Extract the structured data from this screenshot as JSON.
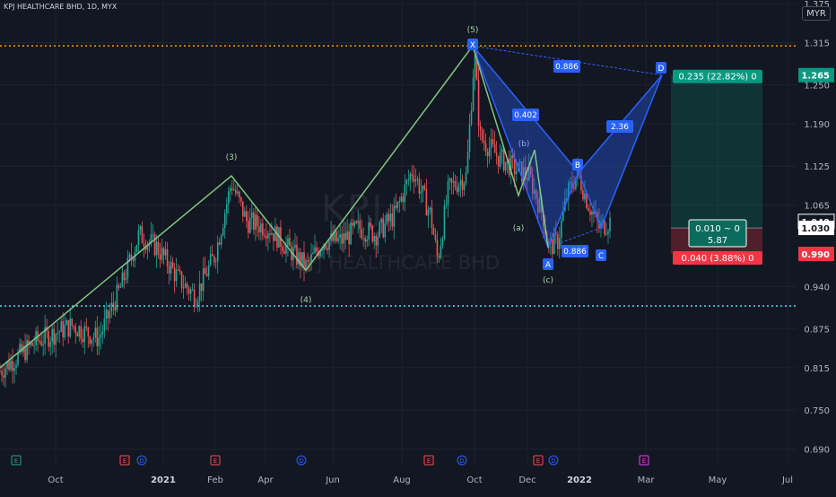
{
  "header": {
    "title": "KPJ HEALTHCARE BHD, 1D, MYX",
    "currency": "MYR",
    "watermark_symbol": "KPJ",
    "watermark_name": "KPJ HEALTHCARE BHD"
  },
  "chart_data": {
    "type": "candlestick",
    "title": "KPJ HEALTHCARE BHD, 1D, MYX",
    "ylim": [
      0.67,
      1.375
    ],
    "y_ticks": [
      "1.375",
      "1.315",
      "1.250",
      "1.190",
      "1.125",
      "1.065",
      "0.940",
      "0.875",
      "0.815",
      "0.750",
      "0.690"
    ],
    "x_ticks": [
      "Oct",
      "2021",
      "Feb",
      "Apr",
      "Jun",
      "Aug",
      "Oct",
      "Dec",
      "2022",
      "Mar",
      "May",
      "Jul"
    ],
    "current_price": "1.040",
    "price_labels": [
      {
        "value": "1.265",
        "kind": "target",
        "color": "#089981"
      },
      {
        "value": "1.040",
        "kind": "last",
        "color": "#131722"
      },
      {
        "value": "1.030",
        "kind": "entry",
        "color": "#ffffff"
      },
      {
        "value": "0.990",
        "kind": "stop",
        "color": "#f23645"
      }
    ],
    "horizontal_lines": [
      {
        "value": 1.31,
        "style": "dotted",
        "color": "#ff9800"
      },
      {
        "value": 0.91,
        "style": "dotted",
        "color": "#4dd0e1"
      }
    ],
    "candles_summary": {
      "start": "Aug 2020",
      "end": "Jan 2022",
      "low": 0.8,
      "high": 1.31
    },
    "elliott_wave": [
      {
        "label": "(3)",
        "date": "Mar 2021",
        "price": 1.11
      },
      {
        "label": "(4)",
        "date": "May 2021",
        "price": 0.965
      },
      {
        "label": "(5)",
        "date": "Oct 2021",
        "price": 1.31
      },
      {
        "label": "(a)",
        "date": "Nov 2021",
        "price": 1.08
      },
      {
        "label": "(b)",
        "date": "Nov 2021",
        "price": 1.15
      },
      {
        "label": "(c)",
        "date": "Dec 2021",
        "price": 1.0
      }
    ],
    "harmonic_pattern": {
      "points": [
        {
          "label": "X",
          "price": 1.31
        },
        {
          "label": "A",
          "price": 1.0
        },
        {
          "label": "B",
          "price": 1.115
        },
        {
          "label": "C",
          "price": 1.03
        },
        {
          "label": "D",
          "price": 1.265
        }
      ],
      "ratios": [
        "0.886",
        "0.402",
        "0.886",
        "2.36"
      ]
    },
    "position": {
      "entry": 1.03,
      "target": 1.265,
      "stop": 0.99,
      "target_label": "0.235 (22.82%) 0",
      "stop_label": "0.040 (3.88%) 0",
      "center_label_1": "0.010 ~ 0",
      "center_label_2": "5.87"
    },
    "event_markers": [
      "E",
      "E",
      "D",
      "E",
      "D",
      "E",
      "D",
      "E",
      "D",
      "E"
    ]
  }
}
